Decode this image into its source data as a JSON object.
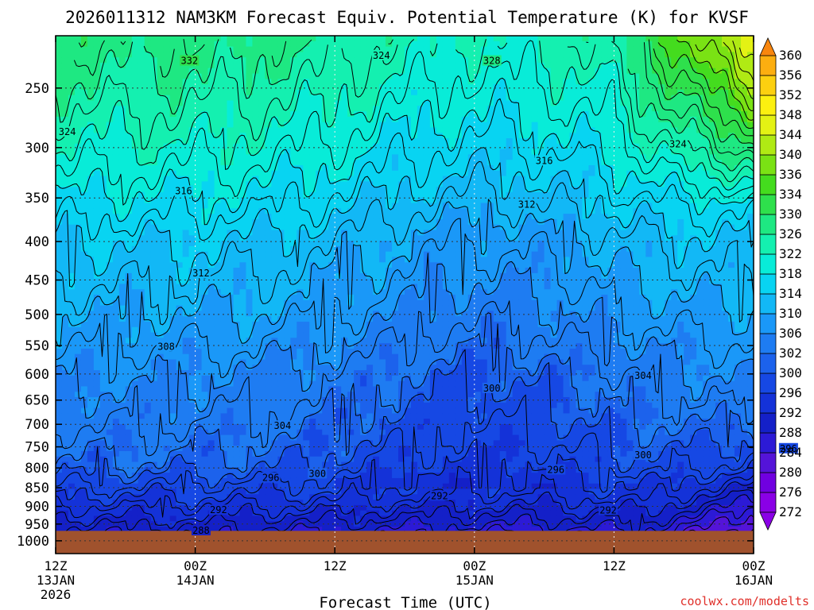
{
  "chart_data": {
    "type": "contour",
    "title": "2026011312 NAM3KM Forecast Equiv. Potential Temperature (K) for KVSF",
    "xlabel": "Forecast Time (UTC)",
    "ylabel": "",
    "credit": "coolwx.com/modelts",
    "pressure_levels": [
      250,
      300,
      350,
      400,
      450,
      500,
      550,
      600,
      650,
      700,
      750,
      800,
      850,
      900,
      950,
      1000
    ],
    "ylim": [
      1000,
      200
    ],
    "x_ticks": [
      {
        "line1": "12Z",
        "line2": "13JAN",
        "line3": "2026"
      },
      {
        "line1": "00Z",
        "line2": "14JAN",
        "line3": ""
      },
      {
        "line1": "12Z",
        "line2": "",
        "line3": ""
      },
      {
        "line1": "00Z",
        "line2": "15JAN",
        "line3": ""
      },
      {
        "line1": "12Z",
        "line2": "",
        "line3": ""
      },
      {
        "line1": "00Z",
        "line2": "16JAN",
        "line3": ""
      }
    ],
    "xlim_hours": [
      0,
      60
    ],
    "colorbar_levels": [
      272,
      276,
      280,
      284,
      288,
      292,
      296,
      300,
      302,
      306,
      310,
      314,
      318,
      322,
      326,
      330,
      334,
      336,
      340,
      344,
      348,
      352,
      356,
      360
    ],
    "colorbar_colors": [
      "#8a00e6",
      "#7000e0",
      "#5414d8",
      "#2c1ad6",
      "#1420c8",
      "#1432d8",
      "#1648e4",
      "#1c62ec",
      "#1e7cf2",
      "#1a98f8",
      "#12b8f6",
      "#08d4f2",
      "#08ecd8",
      "#14f0b0",
      "#1ee882",
      "#2ee04c",
      "#44dc1e",
      "#7ae214",
      "#b0ea14",
      "#e4f214",
      "#fcf010",
      "#fcd010",
      "#fcae10",
      "#f8860e"
    ],
    "contour_labels": [
      {
        "hour": 11.5,
        "value": 332
      },
      {
        "hour": 37.5,
        "value": 328
      },
      {
        "hour": 28.0,
        "value": 324
      },
      {
        "hour": 1.0,
        "value": 324
      },
      {
        "hour": 53.5,
        "value": 324
      },
      {
        "hour": 11.0,
        "value": 316
      },
      {
        "hour": 42.0,
        "value": 316
      },
      {
        "hour": 12.5,
        "value": 312
      },
      {
        "hour": 40.5,
        "value": 312
      },
      {
        "hour": 9.5,
        "value": 308
      },
      {
        "hour": 19.5,
        "value": 304
      },
      {
        "hour": 50.5,
        "value": 304
      },
      {
        "hour": 63.0,
        "value": 296
      },
      {
        "hour": 50.5,
        "value": 300
      },
      {
        "hour": 22.5,
        "value": 300
      },
      {
        "hour": 37.5,
        "value": 300
      },
      {
        "hour": 18.5,
        "value": 296
      },
      {
        "hour": 14.0,
        "value": 292
      },
      {
        "hour": 43.0,
        "value": 296
      },
      {
        "hour": 12.5,
        "value": 288
      },
      {
        "hour": 33.0,
        "value": 292
      },
      {
        "hour": 47.5,
        "value": 292
      }
    ],
    "surface_pressure_hpa": 970
  }
}
